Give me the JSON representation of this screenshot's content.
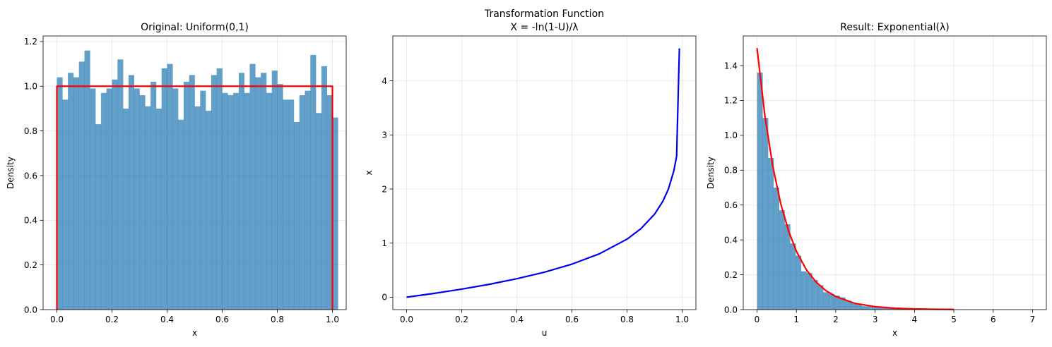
{
  "chart_data": [
    {
      "type": "bar",
      "title": "Original: Uniform(0,1)",
      "xlabel": "x",
      "ylabel": "Density",
      "xlim": [
        -0.05,
        1.05
      ],
      "ylim": [
        0,
        1.225
      ],
      "xticks": [
        0.0,
        0.2,
        0.4,
        0.6,
        0.8,
        1.0
      ],
      "yticks": [
        0.0,
        0.2,
        0.4,
        0.6,
        0.8,
        1.0,
        1.2
      ],
      "grid": true,
      "colors": {
        "bars": "#1f77b4",
        "line": "#ff0000"
      },
      "histogram": {
        "bin_start": 0.0,
        "bin_width": 0.02,
        "values": [
          1.04,
          0.94,
          1.06,
          1.04,
          1.11,
          1.16,
          0.99,
          0.83,
          0.97,
          0.99,
          1.03,
          1.12,
          0.9,
          1.05,
          0.99,
          0.96,
          0.91,
          1.02,
          0.9,
          1.08,
          1.1,
          0.99,
          0.85,
          1.02,
          1.05,
          0.91,
          0.98,
          0.89,
          1.05,
          1.08,
          0.97,
          0.96,
          0.97,
          1.06,
          0.97,
          1.1,
          1.04,
          1.06,
          0.97,
          1.07,
          1.01,
          0.94,
          0.94,
          0.84,
          0.96,
          0.98,
          1.14,
          0.88,
          1.09,
          0.96,
          0.86
        ]
      },
      "line": {
        "x": [
          0.0,
          0.0,
          1.0,
          1.0
        ],
        "y": [
          0.0,
          1.0,
          1.0,
          0.0
        ]
      }
    },
    {
      "type": "line",
      "title_lines": [
        "Transformation Function",
        "X = -ln(1-U)/λ"
      ],
      "xlabel": "u",
      "ylabel": "x",
      "xlim": [
        -0.05,
        1.05
      ],
      "ylim": [
        -0.23,
        4.83
      ],
      "xticks": [
        0.0,
        0.2,
        0.4,
        0.6,
        0.8,
        1.0
      ],
      "yticks": [
        0,
        1,
        2,
        3,
        4
      ],
      "grid": true,
      "colors": {
        "line": "#0000ee"
      },
      "series": [
        {
          "x": [
            0.0,
            0.1,
            0.2,
            0.3,
            0.4,
            0.5,
            0.6,
            0.7,
            0.8,
            0.85,
            0.9,
            0.93,
            0.95,
            0.97,
            0.98,
            0.99
          ],
          "y": [
            0.0,
            0.07,
            0.149,
            0.238,
            0.341,
            0.462,
            0.611,
            0.803,
            1.073,
            1.265,
            1.535,
            1.773,
            1.997,
            2.338,
            2.608,
            4.6
          ]
        }
      ]
    },
    {
      "type": "bar",
      "title": "Result: Exponential(λ)",
      "xlabel": "x",
      "ylabel": "Density",
      "xlim": [
        -0.35,
        7.35
      ],
      "ylim": [
        0,
        1.57
      ],
      "xticks": [
        0,
        1,
        2,
        3,
        4,
        5,
        6,
        7
      ],
      "yticks": [
        0.0,
        0.2,
        0.4,
        0.6,
        0.8,
        1.0,
        1.2,
        1.4
      ],
      "grid": true,
      "colors": {
        "bars": "#1f77b4",
        "line": "#ff0000"
      },
      "histogram": {
        "bin_start": 0.0,
        "bin_width": 0.14,
        "values": [
          1.36,
          1.1,
          0.87,
          0.7,
          0.57,
          0.49,
          0.38,
          0.31,
          0.22,
          0.21,
          0.17,
          0.14,
          0.1,
          0.09,
          0.08,
          0.07,
          0.05,
          0.04,
          0.03,
          0.02,
          0.02,
          0.015,
          0.01,
          0.01,
          0.008,
          0.006,
          0.005,
          0.004,
          0.003,
          0.003,
          0.002,
          0.002,
          0.002,
          0.001,
          0.001,
          0.001,
          0.0,
          0.001,
          0.0,
          0.0,
          0.0,
          0.0,
          0.0,
          0.0,
          0.0,
          0.0,
          0.0,
          0.0,
          0.0,
          0.0,
          0.0
        ]
      },
      "line": {
        "x": [
          0.0,
          0.2,
          0.4,
          0.6,
          0.8,
          1.0,
          1.25,
          1.5,
          1.75,
          2.0,
          2.5,
          3.0,
          3.5,
          4.0,
          4.5,
          5.0
        ],
        "y": [
          1.5,
          1.111,
          0.823,
          0.61,
          0.452,
          0.335,
          0.23,
          0.158,
          0.109,
          0.075,
          0.035,
          0.017,
          0.008,
          0.004,
          0.002,
          0.001
        ]
      }
    }
  ]
}
